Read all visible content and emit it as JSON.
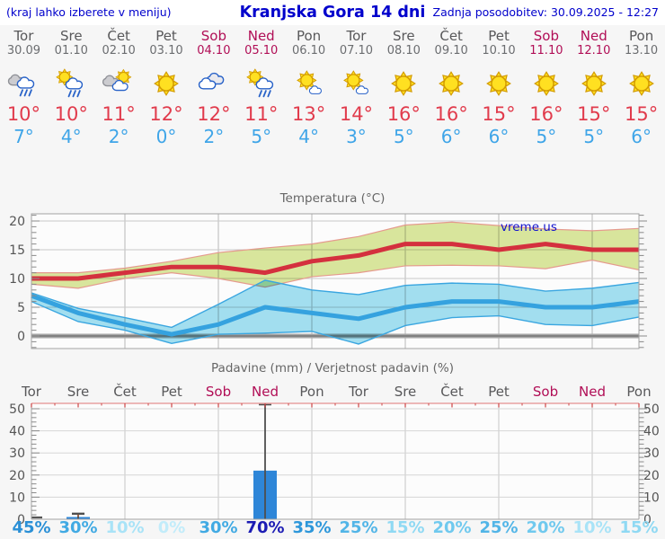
{
  "header": {
    "left_note": "(kraj lahko izberete v meniju)",
    "title": "Kranjska Gora 14 dni",
    "updated": "Zadnja posodobitev: 30.09.2025 - 12:27"
  },
  "colors": {
    "link_blue": "#0000cc",
    "weekday_gray": "#58585a",
    "weekend_red": "#b10e56",
    "tmax_red": "#e13b4c",
    "tmin_blue": "#3fa5e8",
    "bar_blue": "#2e86d8",
    "warm_band": "#dbe89e",
    "warm_band_edge": "#e59a8e",
    "cold_band": "#a4e1f2",
    "cold_band_edge": "#3aa6e0",
    "max_line": "#d4303e",
    "min_line": "#35a2df"
  },
  "days": [
    {
      "name": "Tor",
      "date": "30.09",
      "weekend": false,
      "icon": "rain",
      "tmax": "10°",
      "tmin": "7°",
      "prob": "45%",
      "prob_color": "#2b90d6"
    },
    {
      "name": "Sre",
      "date": "01.10",
      "weekend": false,
      "icon": "sun-cloud-rain",
      "tmax": "10°",
      "tmin": "4°",
      "prob": "30%",
      "prob_color": "#41aae3"
    },
    {
      "name": "Čet",
      "date": "02.10",
      "weekend": false,
      "icon": "cloudy-sun",
      "tmax": "11°",
      "tmin": "2°",
      "prob": "10%",
      "prob_color": "#a9e3f7"
    },
    {
      "name": "Pet",
      "date": "03.10",
      "weekend": false,
      "icon": "sunny",
      "tmax": "12°",
      "tmin": "0°",
      "prob": "0%",
      "prob_color": "#c2ecfa"
    },
    {
      "name": "Sob",
      "date": "04.10",
      "weekend": true,
      "icon": "cloudy",
      "tmax": "12°",
      "tmin": "2°",
      "prob": "30%",
      "prob_color": "#41aae3"
    },
    {
      "name": "Ned",
      "date": "05.10",
      "weekend": true,
      "icon": "sun-cloud-rain",
      "tmax": "11°",
      "tmin": "5°",
      "prob": "70%",
      "prob_color": "#1c1cb4"
    },
    {
      "name": "Pon",
      "date": "06.10",
      "weekend": false,
      "icon": "mostly-sunny",
      "tmax": "13°",
      "tmin": "4°",
      "prob": "35%",
      "prob_color": "#2d97da"
    },
    {
      "name": "Tor",
      "date": "07.10",
      "weekend": false,
      "icon": "mostly-sunny",
      "tmax": "14°",
      "tmin": "3°",
      "prob": "25%",
      "prob_color": "#52b5e7"
    },
    {
      "name": "Sre",
      "date": "08.10",
      "weekend": false,
      "icon": "sunny",
      "tmax": "16°",
      "tmin": "5°",
      "prob": "15%",
      "prob_color": "#8fd9f3"
    },
    {
      "name": "Čet",
      "date": "09.10",
      "weekend": false,
      "icon": "sunny",
      "tmax": "16°",
      "tmin": "6°",
      "prob": "20%",
      "prob_color": "#70c9ee"
    },
    {
      "name": "Pet",
      "date": "10.10",
      "weekend": false,
      "icon": "sunny",
      "tmax": "15°",
      "tmin": "6°",
      "prob": "25%",
      "prob_color": "#52b5e7"
    },
    {
      "name": "Sob",
      "date": "11.10",
      "weekend": true,
      "icon": "sunny",
      "tmax": "16°",
      "tmin": "5°",
      "prob": "20%",
      "prob_color": "#70c9ee"
    },
    {
      "name": "Ned",
      "date": "12.10",
      "weekend": true,
      "icon": "sunny",
      "tmax": "15°",
      "tmin": "5°",
      "prob": "10%",
      "prob_color": "#a9e3f7"
    },
    {
      "name": "Pon",
      "date": "13.10",
      "weekend": false,
      "icon": "sunny",
      "tmax": "15°",
      "tmin": "6°",
      "prob": "15%",
      "prob_color": "#8fd9f3"
    }
  ],
  "chart_data": [
    {
      "type": "line",
      "title": "Temperatura (°C)",
      "watermark": "vreme.us",
      "categories": [
        "Tor 30.09",
        "Sre 01.10",
        "Čet 02.10",
        "Pet 03.10",
        "Sob 04.10",
        "Ned 05.10",
        "Pon 06.10",
        "Tor 07.10",
        "Sre 08.10",
        "Čet 09.10",
        "Pet 10.10",
        "Sob 11.10",
        "Ned 12.10",
        "Pon 13.10"
      ],
      "ylim": [
        -2.2,
        21.3
      ],
      "yticks": [
        0,
        5,
        10,
        15,
        20
      ],
      "grid": true,
      "series": [
        {
          "name": "max",
          "color": "#d4303e",
          "values": [
            10,
            10,
            11,
            12,
            12,
            11,
            13,
            14,
            16,
            16,
            15,
            16,
            15,
            15
          ]
        },
        {
          "name": "max_range_upper",
          "values": [
            11,
            11,
            11.8,
            13,
            14.5,
            15.3,
            16,
            17.3,
            19.3,
            19.8,
            19.2,
            18.6,
            18.3,
            18.7
          ]
        },
        {
          "name": "max_range_lower",
          "values": [
            9,
            8.3,
            10,
            11,
            10,
            8.5,
            10.3,
            11,
            12.2,
            12.3,
            12.2,
            11.7,
            13.2,
            11.5
          ]
        },
        {
          "name": "min",
          "color": "#35a2df",
          "values": [
            7,
            4,
            2,
            0.3,
            2,
            5,
            4,
            3,
            5,
            6,
            6,
            5,
            5,
            6
          ]
        },
        {
          "name": "min_range_upper",
          "values": [
            7.5,
            4.8,
            3.2,
            1.5,
            5.5,
            9.7,
            8,
            7.2,
            8.8,
            9.2,
            9,
            7.8,
            8.3,
            9.3
          ]
        },
        {
          "name": "min_range_lower",
          "values": [
            6,
            2.5,
            1,
            -1.3,
            0.3,
            0.5,
            0.8,
            -1.4,
            1.8,
            3.2,
            3.5,
            2,
            1.8,
            3.3
          ]
        }
      ]
    },
    {
      "type": "bar",
      "title": "Padavine (mm) / Verjetnost padavin (%)",
      "categories": [
        "Tor",
        "Sre",
        "Čet",
        "Pet",
        "Sob",
        "Ned",
        "Pon",
        "Tor",
        "Sre",
        "Čet",
        "Pet",
        "Sob",
        "Ned",
        "Pon"
      ],
      "precip_mm": [
        0,
        1,
        0,
        0,
        0,
        22,
        0,
        0,
        0,
        0,
        0,
        0,
        0,
        0
      ],
      "whisker_mm": [
        1,
        2.5,
        0,
        0,
        0,
        52,
        0,
        0,
        0,
        0,
        0,
        0,
        0,
        0
      ],
      "probability_pct": [
        45,
        30,
        10,
        0,
        30,
        70,
        35,
        25,
        15,
        20,
        25,
        20,
        10,
        15
      ],
      "ylim": [
        0,
        52
      ],
      "yticks": [
        0,
        10,
        20,
        30,
        40,
        50
      ],
      "grid": true,
      "bar_color": "#2e86d8"
    }
  ]
}
